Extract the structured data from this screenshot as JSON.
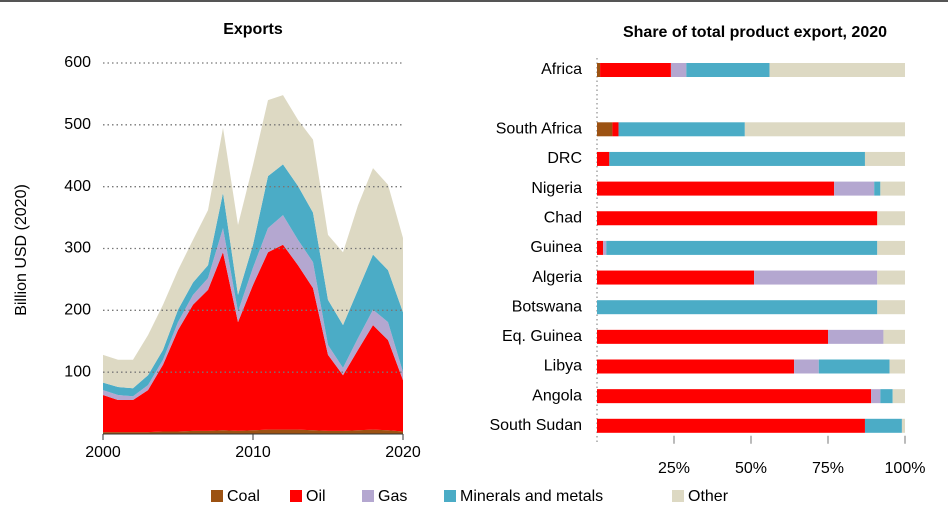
{
  "chart_data": [
    {
      "type": "area",
      "stacked": true,
      "title": "Exports",
      "y_label": "Billion USD (2020)",
      "x": [
        2000,
        2001,
        2002,
        2003,
        2004,
        2005,
        2006,
        2007,
        2008,
        2009,
        2010,
        2011,
        2012,
        2013,
        2014,
        2015,
        2016,
        2017,
        2018,
        2019,
        2020
      ],
      "xlim": [
        2000,
        2020
      ],
      "xticks": [
        2000,
        2010,
        2020
      ],
      "ylim": [
        0,
        600
      ],
      "yticks": [
        100,
        200,
        300,
        400,
        500,
        600
      ],
      "grid": true,
      "series": [
        {
          "name": "Coal",
          "color": "#9c5212",
          "values": [
            3,
            3,
            3,
            3,
            4,
            4,
            5,
            5,
            6,
            5,
            6,
            7,
            7,
            7,
            6,
            5,
            5,
            6,
            7,
            6,
            4
          ]
        },
        {
          "name": "Oil",
          "color": "#ff0000",
          "values": [
            60,
            52,
            52,
            68,
            108,
            164,
            204,
            228,
            288,
            176,
            235,
            287,
            299,
            266,
            230,
            123,
            90,
            130,
            169,
            146,
            83
          ]
        },
        {
          "name": "Gas",
          "color": "#b4a7d0",
          "values": [
            8,
            8,
            6,
            8,
            8,
            13,
            16,
            19,
            39,
            17,
            28,
            39,
            48,
            41,
            42,
            16,
            12,
            19,
            25,
            29,
            13
          ]
        },
        {
          "name": "Minerals and metals",
          "color": "#4bacc6",
          "values": [
            12,
            13,
            13,
            16,
            16,
            20,
            20,
            21,
            57,
            27,
            37,
            84,
            82,
            87,
            80,
            73,
            69,
            78,
            89,
            84,
            97
          ]
        },
        {
          "name": "Other",
          "color": "#ddd9c3",
          "values": [
            45,
            44,
            46,
            65,
            73,
            64,
            69,
            89,
            105,
            113,
            129,
            123,
            112,
            107,
            118,
            105,
            118,
            137,
            140,
            138,
            120
          ]
        }
      ]
    },
    {
      "type": "bar",
      "orientation": "horizontal",
      "stacked": true,
      "title": "Share of total product export, 2020",
      "categories": [
        "Africa",
        null,
        "South Africa",
        "DRC",
        "Nigeria",
        "Chad",
        "Guinea",
        "Algeria",
        "Botswana",
        "Eq. Guinea",
        "Libya",
        "Angola",
        "South Sudan"
      ],
      "xlim": [
        0,
        100
      ],
      "xticks": [
        {
          "value": 25,
          "label": "25%"
        },
        {
          "value": 50,
          "label": "50%"
        },
        {
          "value": 75,
          "label": "75%"
        },
        {
          "value": 100,
          "label": "100%"
        }
      ],
      "series": [
        {
          "name": "Coal",
          "color": "#9c5212",
          "values": [
            1,
            null,
            5,
            0,
            0,
            0,
            0,
            0,
            0,
            0,
            0,
            0,
            0
          ]
        },
        {
          "name": "Oil",
          "color": "#ff0000",
          "values": [
            23,
            null,
            2,
            4,
            77,
            91,
            2,
            51,
            0,
            75,
            64,
            89,
            87
          ]
        },
        {
          "name": "Gas",
          "color": "#b4a7d0",
          "values": [
            5,
            null,
            0,
            0,
            13,
            0,
            1,
            40,
            0,
            18,
            8,
            3,
            0
          ]
        },
        {
          "name": "Minerals and metals",
          "color": "#4bacc6",
          "values": [
            27,
            null,
            41,
            83,
            2,
            0,
            88,
            0,
            91,
            0,
            23,
            4,
            12
          ]
        },
        {
          "name": "Other",
          "color": "#ddd9c3",
          "values": [
            44,
            null,
            52,
            13,
            8,
            9,
            9,
            9,
            9,
            7,
            5,
            4,
            1
          ]
        }
      ]
    }
  ]
}
